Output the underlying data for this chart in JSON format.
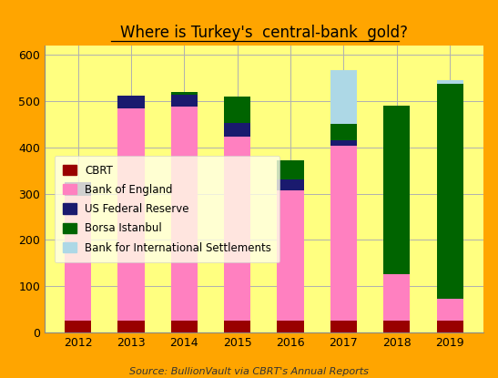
{
  "title": "Where is Turkey's  central-bank  gold?",
  "years": [
    "2012",
    "2013",
    "2014",
    "2015",
    "2016",
    "2017",
    "2018",
    "2019"
  ],
  "series": {
    "CBRT": [
      26,
      26,
      26,
      26,
      26,
      26,
      26,
      26
    ],
    "Bank of England": [
      270,
      458,
      462,
      398,
      282,
      378,
      100,
      48
    ],
    "US Federal Reserve": [
      28,
      28,
      26,
      28,
      22,
      12,
      0,
      0
    ],
    "Borsa Istanbul": [
      0,
      0,
      6,
      58,
      42,
      35,
      363,
      463
    ],
    "Bank for International Settlements": [
      0,
      0,
      0,
      0,
      0,
      115,
      0,
      8
    ]
  },
  "colors": {
    "CBRT": "#990000",
    "Bank of England": "#ff80c0",
    "US Federal Reserve": "#1a1a6e",
    "Borsa Istanbul": "#006400",
    "Bank for International Settlements": "#add8e6"
  },
  "ylim": [
    0,
    620
  ],
  "yticks": [
    0,
    100,
    200,
    300,
    400,
    500,
    600
  ],
  "source_text": "Source: BullionVault via CBRT's Annual Reports",
  "bg_outer": "#ffa500",
  "bg_inner": "#ffff80",
  "legend_bg": "#ffffe8",
  "bar_width": 0.5
}
